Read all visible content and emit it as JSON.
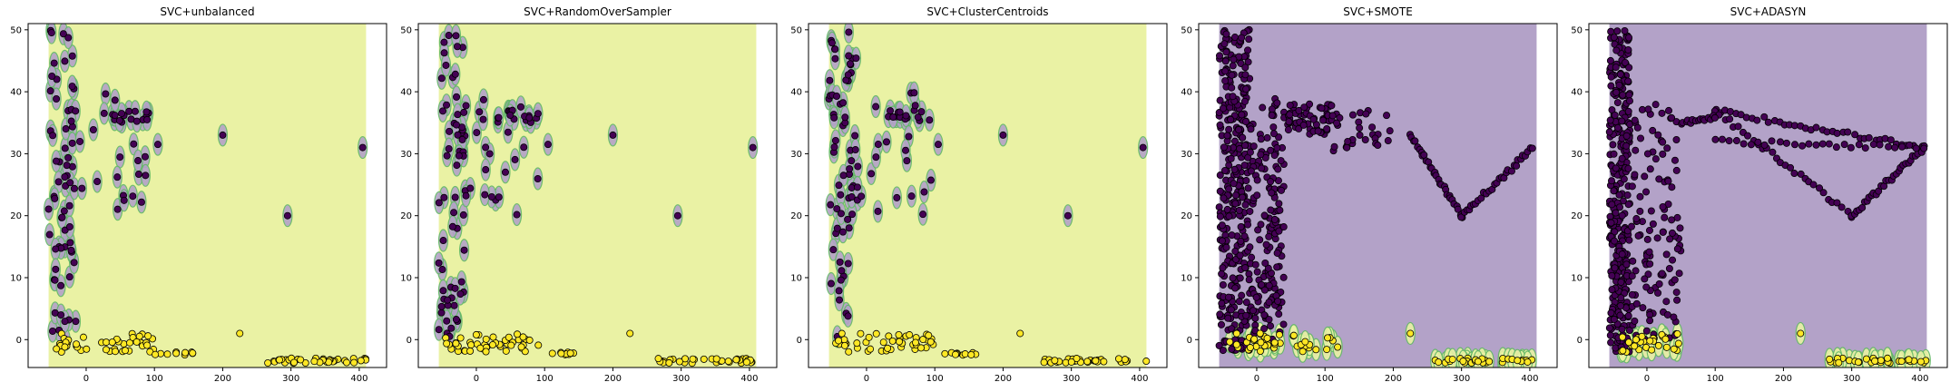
{
  "chart_data": [
    {
      "type": "scatter",
      "title": "SVC+unbalanced",
      "xlim": [
        -85,
        440
      ],
      "ylim": [
        -4.5,
        51
      ],
      "xticks": [
        0,
        100,
        200,
        300,
        400
      ],
      "yticks": [
        0,
        10,
        20,
        30,
        40,
        50
      ],
      "background_class": "minority",
      "clusters": [
        {
          "class": "majority",
          "x": [
            -55,
            -15
          ],
          "y": [
            0,
            50
          ],
          "count": 60
        },
        {
          "class": "majority",
          "x": [
            30,
            95
          ],
          "y": [
            35,
            37
          ],
          "count": 15
        },
        {
          "class": "majority",
          "x": [
            -30,
            100
          ],
          "y": [
            20,
            40
          ],
          "count": 25
        },
        {
          "class": "minority",
          "x": [
            -45,
            100
          ],
          "y": [
            -2,
            1
          ],
          "count": 45
        },
        {
          "class": "minority",
          "x": [
            100,
            160
          ],
          "y": [
            -2.5,
            -2
          ],
          "count": 10
        },
        {
          "class": "minority",
          "x": [
            260,
            410
          ],
          "y": [
            -3.8,
            -3
          ],
          "count": 35
        }
      ],
      "isolated": [
        {
          "class": "majority",
          "x": 200,
          "y": 33
        },
        {
          "class": "majority",
          "x": 295,
          "y": 20
        },
        {
          "class": "majority",
          "x": 405,
          "y": 31
        },
        {
          "class": "majority",
          "x": 105,
          "y": 31.5
        },
        {
          "class": "minority",
          "x": 225,
          "y": 1
        }
      ]
    },
    {
      "type": "scatter",
      "title": "SVC+RandomOverSampler",
      "xlim": [
        -85,
        440
      ],
      "ylim": [
        -4.5,
        51
      ],
      "xticks": [
        0,
        100,
        200,
        300,
        400
      ],
      "yticks": [
        0,
        10,
        20,
        30,
        40,
        50
      ],
      "background_class": "minority",
      "clusters": [
        {
          "class": "majority",
          "x": [
            -55,
            -15
          ],
          "y": [
            0,
            50
          ],
          "count": 60
        },
        {
          "class": "majority",
          "x": [
            30,
            95
          ],
          "y": [
            35,
            37
          ],
          "count": 15
        },
        {
          "class": "majority",
          "x": [
            -30,
            100
          ],
          "y": [
            20,
            40
          ],
          "count": 25
        },
        {
          "class": "minority",
          "x": [
            -45,
            100
          ],
          "y": [
            -2,
            1
          ],
          "count": 45
        },
        {
          "class": "minority",
          "x": [
            100,
            160
          ],
          "y": [
            -2.5,
            -2
          ],
          "count": 10
        },
        {
          "class": "minority",
          "x": [
            260,
            410
          ],
          "y": [
            -3.8,
            -3
          ],
          "count": 35
        }
      ],
      "isolated": [
        {
          "class": "majority",
          "x": 200,
          "y": 33
        },
        {
          "class": "majority",
          "x": 295,
          "y": 20
        },
        {
          "class": "majority",
          "x": 405,
          "y": 31
        },
        {
          "class": "majority",
          "x": 105,
          "y": 31.5
        },
        {
          "class": "minority",
          "x": 225,
          "y": 1
        }
      ]
    },
    {
      "type": "scatter",
      "title": "SVC+ClusterCentroids",
      "xlim": [
        -85,
        440
      ],
      "ylim": [
        -4.5,
        51
      ],
      "xticks": [
        0,
        100,
        200,
        300,
        400
      ],
      "yticks": [
        0,
        10,
        20,
        30,
        40,
        50
      ],
      "background_class": "minority",
      "clusters": [
        {
          "class": "majority",
          "x": [
            -55,
            -15
          ],
          "y": [
            0,
            50
          ],
          "count": 60
        },
        {
          "class": "majority",
          "x": [
            30,
            95
          ],
          "y": [
            35,
            37
          ],
          "count": 15
        },
        {
          "class": "majority",
          "x": [
            -30,
            100
          ],
          "y": [
            20,
            40
          ],
          "count": 25
        },
        {
          "class": "minority",
          "x": [
            -45,
            100
          ],
          "y": [
            -2,
            1
          ],
          "count": 45
        },
        {
          "class": "minority",
          "x": [
            100,
            160
          ],
          "y": [
            -2.5,
            -2
          ],
          "count": 10
        },
        {
          "class": "minority",
          "x": [
            260,
            410
          ],
          "y": [
            -3.8,
            -3
          ],
          "count": 35
        }
      ],
      "isolated": [
        {
          "class": "majority",
          "x": 200,
          "y": 33
        },
        {
          "class": "majority",
          "x": 295,
          "y": 20
        },
        {
          "class": "majority",
          "x": 405,
          "y": 31
        },
        {
          "class": "majority",
          "x": 105,
          "y": 31.5
        },
        {
          "class": "minority",
          "x": 225,
          "y": 1
        }
      ]
    },
    {
      "type": "scatter",
      "title": "SVC+SMOTE",
      "xlim": [
        -85,
        440
      ],
      "ylim": [
        -4.5,
        51
      ],
      "xticks": [
        0,
        100,
        200,
        300,
        400
      ],
      "yticks": [
        0,
        10,
        20,
        30,
        40,
        50
      ],
      "background_class": "majority",
      "clusters": [
        {
          "class": "majority",
          "x": [
            -55,
            -10
          ],
          "y": [
            -2,
            50
          ],
          "count": 320
        },
        {
          "class": "majority",
          "x": [
            -10,
            40
          ],
          "y": [
            0,
            40
          ],
          "count": 160
        },
        {
          "class": "majority",
          "x": [
            40,
            110
          ],
          "y": [
            33,
            38
          ],
          "count": 60
        },
        {
          "class": "majority",
          "x": [
            110,
            200
          ],
          "y": [
            30,
            37
          ],
          "count": 30
        },
        {
          "class": "minority",
          "x": [
            -40,
            120
          ],
          "y": [
            -2,
            1
          ],
          "count": 40
        },
        {
          "class": "minority",
          "x": [
            260,
            410
          ],
          "y": [
            -3.8,
            -3
          ],
          "count": 30
        }
      ],
      "lines": [
        {
          "class": "majority",
          "from": [
            225,
            33
          ],
          "to": [
            300,
            20
          ],
          "count": 30
        },
        {
          "class": "majority",
          "from": [
            300,
            20
          ],
          "to": [
            405,
            31
          ],
          "count": 30
        }
      ],
      "isolated": [
        {
          "class": "minority",
          "x": 225,
          "y": 1
        },
        {
          "class": "minority",
          "x": 5,
          "y": 1
        }
      ]
    },
    {
      "type": "scatter",
      "title": "SVC+ADASYN",
      "xlim": [
        -85,
        440
      ],
      "ylim": [
        -4.5,
        51
      ],
      "xticks": [
        0,
        100,
        200,
        300,
        400
      ],
      "yticks": [
        0,
        10,
        20,
        30,
        40,
        50
      ],
      "background_class": "majority",
      "clusters": [
        {
          "class": "majority",
          "x": [
            -55,
            -25
          ],
          "y": [
            -2,
            50
          ],
          "count": 300
        },
        {
          "class": "majority",
          "x": [
            -25,
            50
          ],
          "y": [
            0,
            38
          ],
          "count": 120
        },
        {
          "class": "minority",
          "x": [
            -40,
            50
          ],
          "y": [
            -2,
            1
          ],
          "count": 30
        },
        {
          "class": "minority",
          "x": [
            260,
            410
          ],
          "y": [
            -3.8,
            -3
          ],
          "count": 30
        }
      ],
      "lines": [
        {
          "class": "majority",
          "from": [
            100,
            37
          ],
          "to": [
            405,
            31
          ],
          "count": 40
        },
        {
          "class": "majority",
          "from": [
            100,
            37
          ],
          "to": [
            300,
            20
          ],
          "count": 30
        },
        {
          "class": "majority",
          "from": [
            300,
            20
          ],
          "to": [
            405,
            31
          ],
          "count": 30
        },
        {
          "class": "majority",
          "from": [
            100,
            32
          ],
          "to": [
            405,
            31
          ],
          "count": 30
        },
        {
          "class": "majority",
          "from": [
            50,
            35
          ],
          "to": [
            100,
            36
          ],
          "count": 15
        }
      ],
      "isolated": [
        {
          "class": "minority",
          "x": 225,
          "y": 1
        }
      ]
    }
  ],
  "colors": {
    "minority_region": "#eaf2a4",
    "majority_region": "#b3a2c8",
    "majority_point": "#440154",
    "minority_point": "#fde725",
    "boundary": "#62b867",
    "edge": "#000000"
  }
}
